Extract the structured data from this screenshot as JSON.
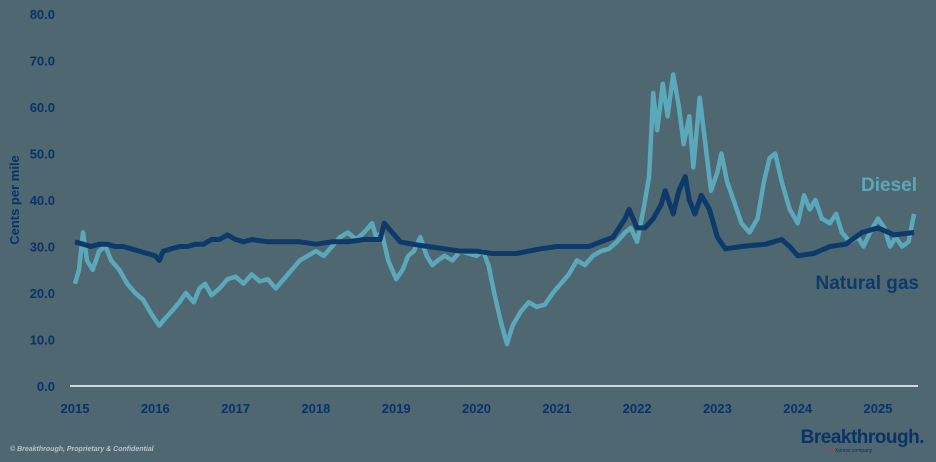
{
  "chart_data": {
    "type": "line",
    "title": "",
    "xlabel": "",
    "ylabel": "Cents per mile",
    "ylim": [
      0,
      80
    ],
    "xlim": [
      2015,
      2025.5
    ],
    "yticks": [
      "0.0",
      "10.0",
      "20.0",
      "30.0",
      "40.0",
      "50.0",
      "60.0",
      "70.0",
      "80.0"
    ],
    "xticks": [
      "2015",
      "2016",
      "2017",
      "2018",
      "2019",
      "2020",
      "2021",
      "2022",
      "2023",
      "2024",
      "2025"
    ],
    "grid": false,
    "legend": "inline labels at right",
    "series": [
      {
        "name": "Diesel",
        "color": "#5ba8bb",
        "x": [
          2015.0,
          2015.05,
          2015.1,
          2015.15,
          2015.22,
          2015.3,
          2015.38,
          2015.45,
          2015.55,
          2015.65,
          2015.75,
          2015.85,
          2015.95,
          2016.05,
          2016.12,
          2016.2,
          2016.3,
          2016.38,
          2016.48,
          2016.55,
          2016.62,
          2016.7,
          2016.8,
          2016.9,
          2017.0,
          2017.1,
          2017.2,
          2017.3,
          2017.4,
          2017.5,
          2017.6,
          2017.7,
          2017.8,
          2017.9,
          2018.0,
          2018.1,
          2018.2,
          2018.3,
          2018.4,
          2018.5,
          2018.6,
          2018.7,
          2018.75,
          2018.82,
          2018.9,
          2019.0,
          2019.08,
          2019.15,
          2019.22,
          2019.3,
          2019.38,
          2019.45,
          2019.52,
          2019.6,
          2019.7,
          2019.8,
          2019.9,
          2020.0,
          2020.08,
          2020.15,
          2020.22,
          2020.3,
          2020.38,
          2020.45,
          2020.55,
          2020.65,
          2020.75,
          2020.85,
          2020.95,
          2021.05,
          2021.15,
          2021.25,
          2021.35,
          2021.45,
          2021.55,
          2021.65,
          2021.75,
          2021.85,
          2021.92,
          2022.0,
          2022.08,
          2022.15,
          2022.2,
          2022.25,
          2022.32,
          2022.38,
          2022.45,
          2022.52,
          2022.58,
          2022.65,
          2022.7,
          2022.78,
          2022.85,
          2022.92,
          2023.0,
          2023.05,
          2023.12,
          2023.2,
          2023.3,
          2023.4,
          2023.5,
          2023.58,
          2023.65,
          2023.72,
          2023.8,
          2023.9,
          2024.0,
          2024.08,
          2024.15,
          2024.22,
          2024.3,
          2024.4,
          2024.48,
          2024.55,
          2024.65,
          2024.75,
          2024.82,
          2024.9,
          2025.0,
          2025.08,
          2025.15,
          2025.22,
          2025.3,
          2025.38,
          2025.45
        ],
        "values": [
          22,
          25,
          33,
          27,
          25,
          29,
          30,
          27,
          25,
          22,
          20,
          18.5,
          15.5,
          13,
          14.5,
          16,
          18,
          20,
          18,
          21,
          22,
          19.5,
          21,
          23,
          23.5,
          22,
          24,
          22.5,
          23,
          21,
          23,
          25,
          27,
          28,
          29,
          28,
          30,
          32,
          33,
          31.5,
          33,
          35,
          32,
          33,
          27,
          23,
          25,
          28,
          29,
          32,
          28,
          26,
          27,
          28,
          27,
          29,
          28.5,
          28,
          29,
          26,
          20,
          14,
          9,
          13,
          16,
          18,
          17,
          17.5,
          20,
          22,
          24,
          27,
          26,
          28,
          29,
          29.5,
          31,
          33,
          34,
          31,
          38,
          45,
          63,
          55,
          65,
          58,
          67,
          60,
          52,
          58,
          47,
          62,
          52,
          42,
          46,
          50,
          44,
          40,
          35,
          33,
          36,
          44,
          49,
          50,
          44,
          38,
          35,
          41,
          38,
          40,
          36,
          35,
          37,
          33,
          31,
          32,
          30,
          33,
          36,
          34,
          30,
          32,
          30,
          31,
          37
        ]
      },
      {
        "name": "Natural gas",
        "color": "#0d3a6a",
        "x": [
          2015.0,
          2015.1,
          2015.2,
          2015.3,
          2015.4,
          2015.5,
          2015.6,
          2015.7,
          2015.8,
          2015.9,
          2016.0,
          2016.05,
          2016.1,
          2016.2,
          2016.3,
          2016.4,
          2016.5,
          2016.6,
          2016.7,
          2016.8,
          2016.9,
          2017.0,
          2017.1,
          2017.2,
          2017.4,
          2017.6,
          2017.8,
          2018.0,
          2018.2,
          2018.4,
          2018.6,
          2018.8,
          2018.85,
          2018.95,
          2019.05,
          2019.2,
          2019.4,
          2019.6,
          2019.8,
          2020.0,
          2020.2,
          2020.5,
          2020.8,
          2021.0,
          2021.4,
          2021.7,
          2021.85,
          2021.9,
          2022.0,
          2022.1,
          2022.2,
          2022.3,
          2022.35,
          2022.45,
          2022.52,
          2022.6,
          2022.65,
          2022.72,
          2022.8,
          2022.9,
          2023.0,
          2023.1,
          2023.3,
          2023.6,
          2023.8,
          2023.9,
          2024.0,
          2024.2,
          2024.4,
          2024.6,
          2024.8,
          2025.0,
          2025.2,
          2025.45
        ],
        "values": [
          31,
          30.5,
          30,
          30.5,
          30.5,
          30,
          30,
          29.5,
          29,
          28.5,
          28,
          27,
          29,
          29.5,
          30,
          30,
          30.5,
          30.5,
          31.5,
          31.5,
          32.5,
          31.5,
          31,
          31.5,
          31,
          31,
          31,
          30.5,
          31,
          31,
          31.5,
          31.5,
          35,
          33,
          31,
          30.5,
          30,
          29.5,
          29,
          29,
          28.5,
          28.5,
          29.5,
          30,
          30,
          32,
          36,
          38,
          34,
          34,
          36,
          39,
          42,
          37,
          42,
          45,
          40,
          37,
          41,
          38,
          32,
          29.5,
          30,
          30.5,
          31.5,
          30,
          28,
          28.5,
          30,
          30.5,
          33,
          34,
          32.5,
          33
        ]
      }
    ],
    "annotations": [
      {
        "text": "Diesel",
        "series": "Diesel"
      },
      {
        "text": "Natural gas",
        "series": "Natural gas"
      }
    ]
  },
  "labels": {
    "diesel": "Diesel",
    "natural_gas": "Natural gas"
  },
  "footer": {
    "copyright": "© Breakthrough, Proprietary & Confidential"
  },
  "brand": {
    "name": "Breakthrough.",
    "sub_badge": "US",
    "sub_text": "Xpress company"
  }
}
